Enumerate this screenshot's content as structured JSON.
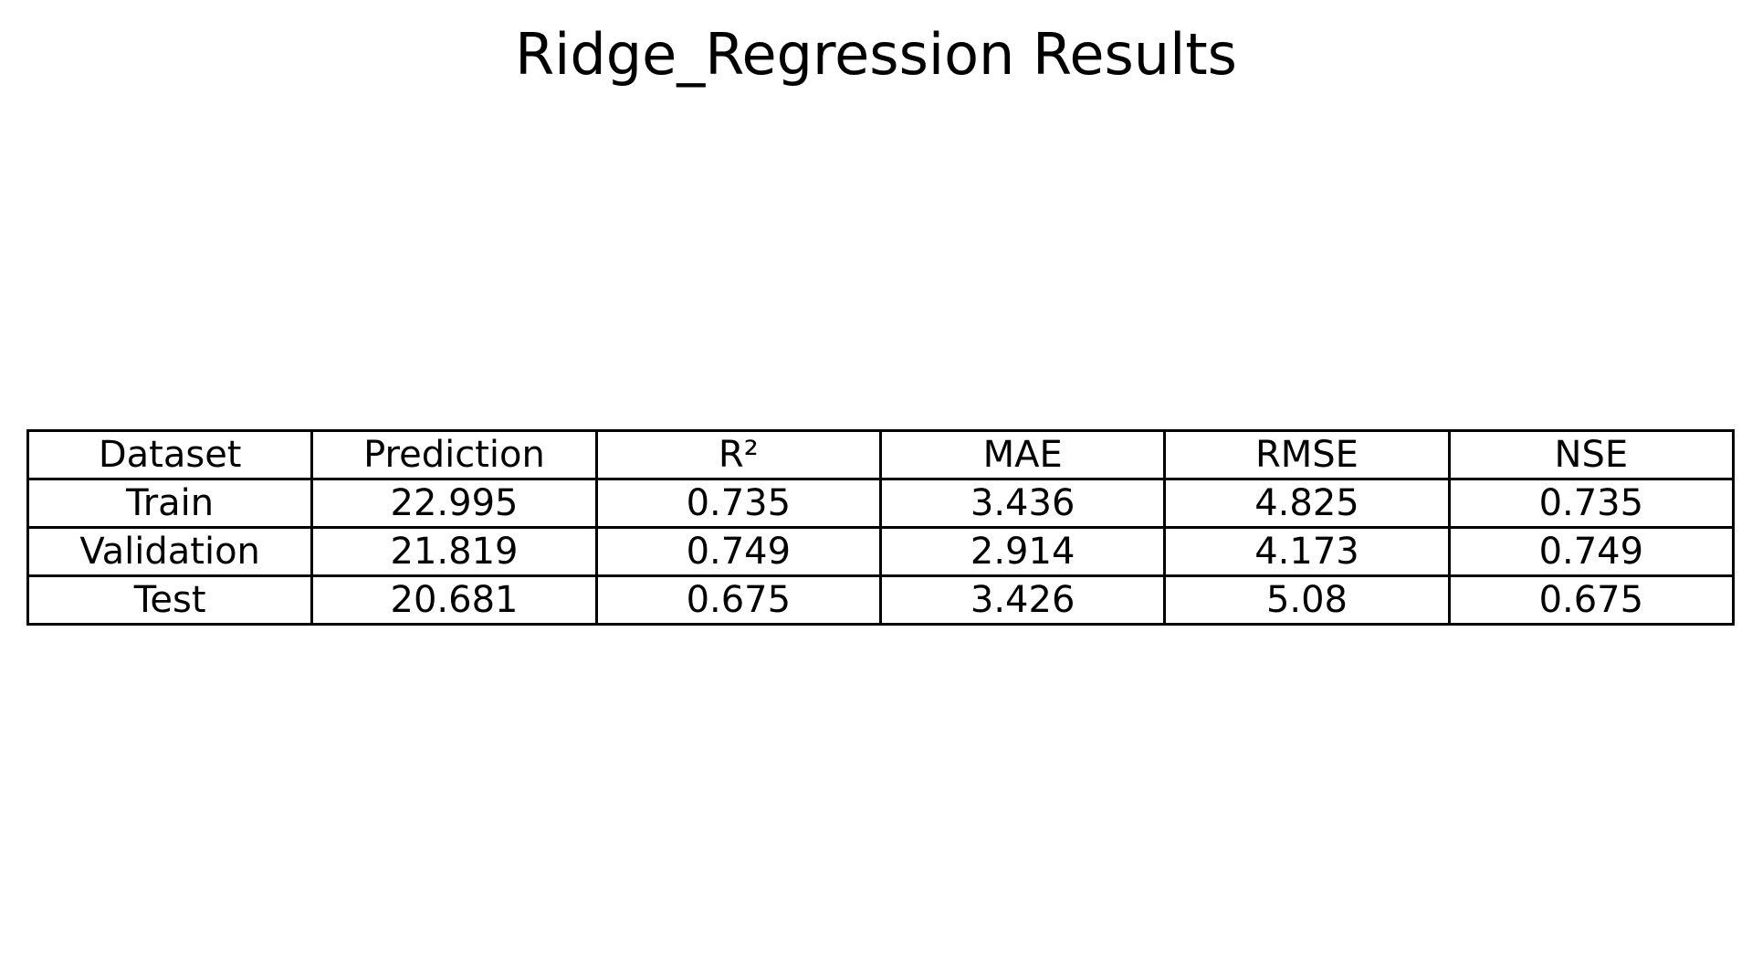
{
  "chart_data": {
    "type": "table",
    "title": "Ridge_Regression Results",
    "columns": [
      "Dataset",
      "Prediction",
      "R²",
      "MAE",
      "RMSE",
      "NSE"
    ],
    "rows": [
      [
        "Train",
        "22.995",
        "0.735",
        "3.436",
        "4.825",
        "0.735"
      ],
      [
        "Validation",
        "21.819",
        "0.749",
        "2.914",
        "4.173",
        "0.749"
      ],
      [
        "Test",
        "20.681",
        "0.675",
        "3.426",
        "5.08",
        "0.675"
      ]
    ]
  }
}
